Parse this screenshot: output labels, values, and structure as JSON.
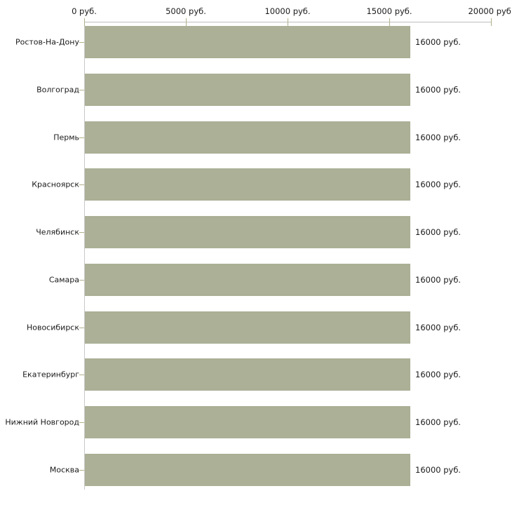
{
  "chart_data": {
    "type": "bar",
    "orientation": "horizontal",
    "categories": [
      "Ростов-На-Дону",
      "Волгоград",
      "Пермь",
      "Красноярск",
      "Челябинск",
      "Самара",
      "Новосибирск",
      "Екатеринбург",
      "Нижний Новгород",
      "Москва"
    ],
    "values": [
      16000,
      16000,
      16000,
      16000,
      16000,
      16000,
      16000,
      16000,
      16000,
      16000
    ],
    "value_labels": [
      "16000 руб.",
      "16000 руб.",
      "16000 руб.",
      "16000 руб.",
      "16000 руб.",
      "16000 руб.",
      "16000 руб.",
      "16000 руб.",
      "16000 руб.",
      "16000 руб."
    ],
    "x_ticks": [
      {
        "value": 0,
        "label": "0 руб."
      },
      {
        "value": 5000,
        "label": "5000 руб."
      },
      {
        "value": 10000,
        "label": "10000 руб."
      },
      {
        "value": 15000,
        "label": "15000 руб."
      },
      {
        "value": 20000,
        "label": "20000 руб."
      }
    ],
    "xlim": [
      0,
      20000
    ],
    "title": "",
    "xlabel": "",
    "ylabel": "",
    "grid": false,
    "legend": "none",
    "colors": {
      "bar": "#abb096",
      "axis_line": "#bdbdbd",
      "y_axis_line": "#c9c9c9",
      "tick": "#b0b08a",
      "text": "#1a1a1a",
      "background": "#ffffff"
    }
  }
}
